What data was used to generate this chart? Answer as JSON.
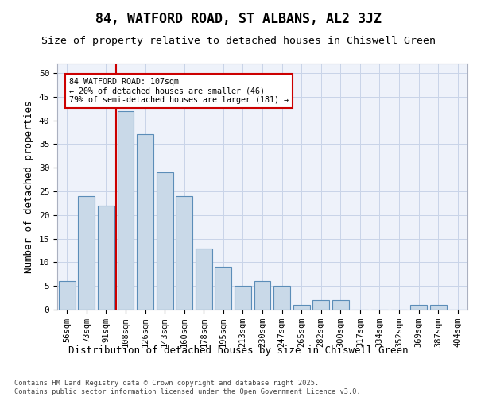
{
  "title": "84, WATFORD ROAD, ST ALBANS, AL2 3JZ",
  "subtitle": "Size of property relative to detached houses in Chiswell Green",
  "xlabel": "Distribution of detached houses by size in Chiswell Green",
  "ylabel": "Number of detached properties",
  "categories": [
    "56sqm",
    "73sqm",
    "91sqm",
    "108sqm",
    "126sqm",
    "143sqm",
    "160sqm",
    "178sqm",
    "195sqm",
    "213sqm",
    "230sqm",
    "247sqm",
    "265sqm",
    "282sqm",
    "300sqm",
    "317sqm",
    "334sqm",
    "352sqm",
    "369sqm",
    "387sqm",
    "404sqm"
  ],
  "values": [
    6,
    24,
    22,
    42,
    37,
    29,
    24,
    13,
    9,
    5,
    6,
    5,
    1,
    2,
    2,
    0,
    0,
    0,
    1,
    1,
    0
  ],
  "bar_color": "#c9d9e8",
  "bar_edge_color": "#5b8db8",
  "vline_index": 3,
  "vline_color": "#cc0000",
  "annotation_line1": "84 WATFORD ROAD: 107sqm",
  "annotation_line2": "← 20% of detached houses are smaller (46)",
  "annotation_line3": "79% of semi-detached houses are larger (181) →",
  "annotation_box_edgecolor": "#cc0000",
  "ylim": [
    0,
    52
  ],
  "yticks": [
    0,
    5,
    10,
    15,
    20,
    25,
    30,
    35,
    40,
    45,
    50
  ],
  "grid_color": "#c8d4e8",
  "bg_color": "#eef2fa",
  "footer": "Contains HM Land Registry data © Crown copyright and database right 2025.\nContains public sector information licensed under the Open Government Licence v3.0."
}
